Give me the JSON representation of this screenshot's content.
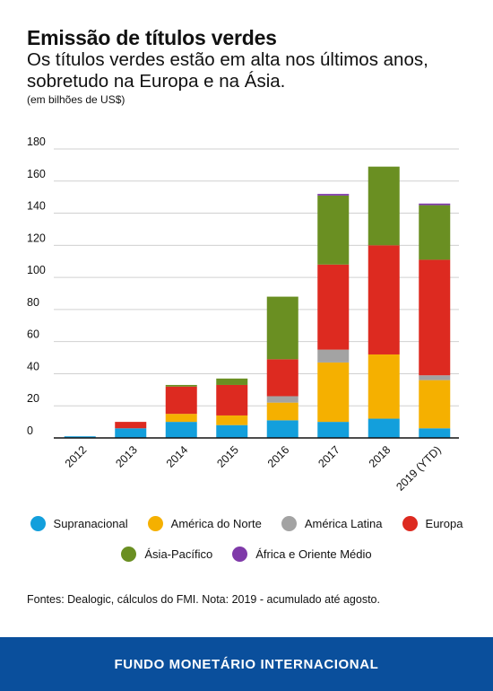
{
  "header": {
    "title": "Emissão de títulos verdes",
    "subtitle": "Os títulos verdes estão em alta nos últimos anos, sobretudo na Europa e na Ásia.",
    "unit": "(em bilhões de US$)"
  },
  "chart_data": {
    "type": "bar",
    "stacked": true,
    "categories": [
      "2012",
      "2013",
      "2014",
      "2015",
      "2016",
      "2017",
      "2018",
      "2019 (YTD)"
    ],
    "ylim": [
      0,
      180
    ],
    "yticks": [
      0,
      20,
      40,
      60,
      80,
      100,
      120,
      140,
      160,
      180
    ],
    "grid": true,
    "legend_position": "bottom",
    "series": [
      {
        "name": "Supranacional",
        "color": "#139fdc",
        "values": [
          1,
          6,
          10,
          8,
          11,
          10,
          12,
          6
        ]
      },
      {
        "name": "América do Norte",
        "color": "#f5b000",
        "values": [
          0,
          0,
          5,
          6,
          11,
          37,
          40,
          30
        ]
      },
      {
        "name": "América Latina",
        "color": "#a3a3a3",
        "values": [
          0,
          0,
          0,
          0,
          4,
          8,
          0,
          3
        ]
      },
      {
        "name": "Europa",
        "color": "#dd2a20",
        "values": [
          0,
          4,
          17,
          19,
          23,
          53,
          68,
          72
        ]
      },
      {
        "name": "Ásia-Pacífico",
        "color": "#6a8f22",
        "values": [
          0,
          0,
          1,
          4,
          39,
          43,
          49,
          34
        ]
      },
      {
        "name": "África e Oriente Médio",
        "color": "#7f3aa9",
        "values": [
          0,
          0,
          0,
          0,
          0,
          1,
          0,
          1
        ]
      }
    ]
  },
  "source": "Fontes: Dealogic, cálculos do FMI. Nota: 2019 - acumulado até agosto.",
  "footer": "FUNDO MONETÁRIO INTERNACIONAL"
}
